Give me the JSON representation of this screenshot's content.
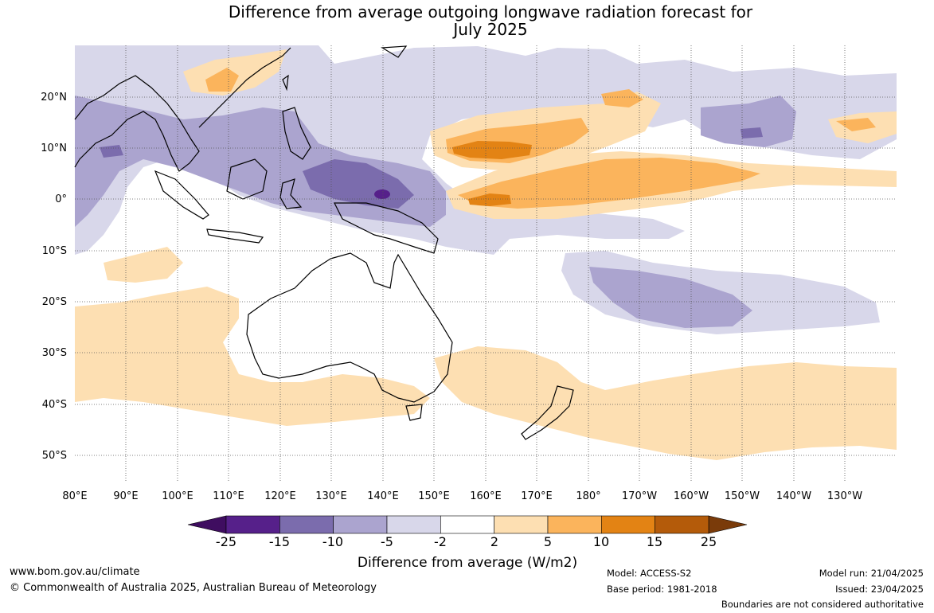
{
  "title": {
    "line1": "Difference from average outgoing longwave radiation forecast for",
    "line2": "July 2025"
  },
  "axes": {
    "lat_labels": [
      "20°N",
      "10°N",
      "0°",
      "10°S",
      "20°S",
      "30°S",
      "40°S",
      "50°S"
    ],
    "lon_labels": [
      "80°E",
      "90°E",
      "100°E",
      "110°E",
      "120°E",
      "130°E",
      "140°E",
      "150°E",
      "160°E",
      "170°E",
      "180°",
      "170°W",
      "160°W",
      "150°W",
      "140°W",
      "130°W"
    ]
  },
  "colorbar": {
    "title": "Difference from average (W/m2)",
    "tick_labels": [
      "-25",
      "-15",
      "-10",
      "-5",
      "-2",
      "2",
      "5",
      "10",
      "15",
      "25"
    ],
    "colors": [
      "#3f0d60",
      "#56208a",
      "#7b6cad",
      "#aba4cf",
      "#d8d7ea",
      "#ffffff",
      "#fddfb2",
      "#fbb45c",
      "#e38314",
      "#b45b0a",
      "#7a3b0a"
    ]
  },
  "footer": {
    "url": "www.bom.gov.au/climate",
    "copyright": "© Commonwealth of Australia 2025, Australian Bureau of Meteorology",
    "model": "Model: ACCESS-S2",
    "base_period": "Base period: 1981-2018",
    "model_run": "Model run: 21/04/2025",
    "issued": "Issued: 23/04/2025",
    "disclaimer": "Boundaries are not considered authoritative"
  }
}
